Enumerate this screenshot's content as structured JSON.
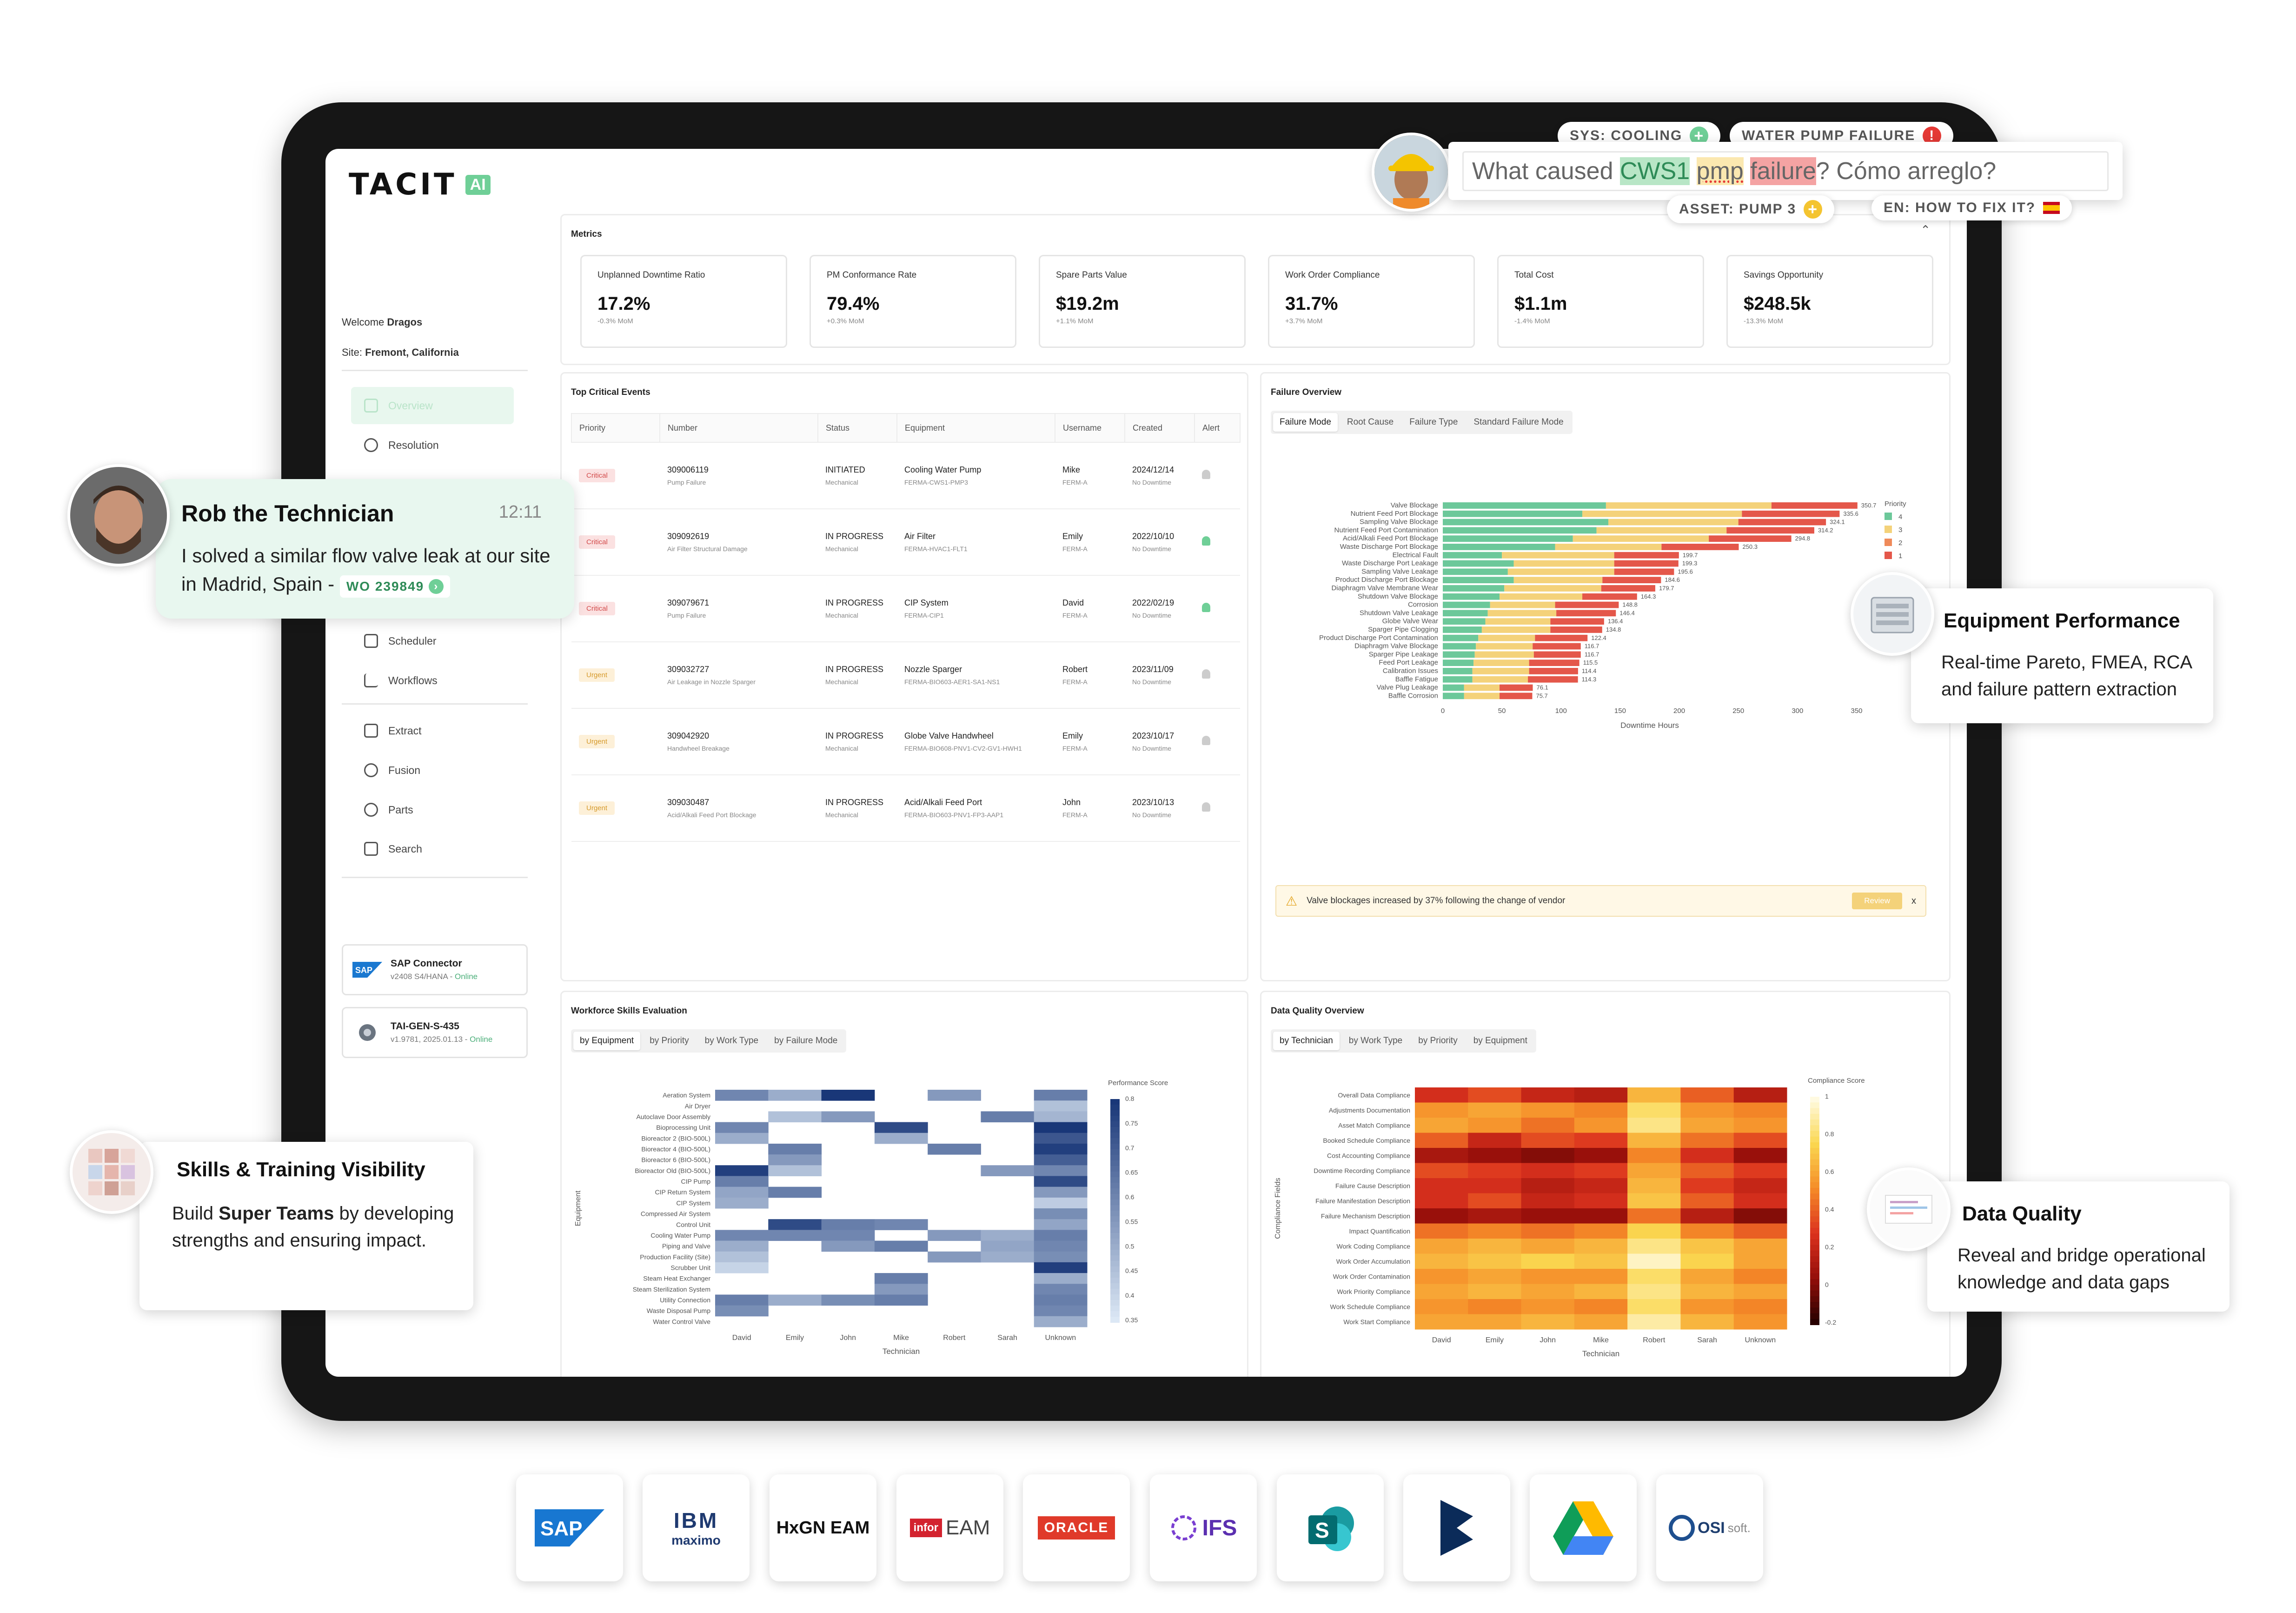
{
  "sidebar": {
    "brand": "TACIT",
    "brand_badge": "AI",
    "welcome_prefix": "Welcome",
    "user_name": "Dragos",
    "site_prefix": "Site:",
    "site_name": "Fremont, California",
    "nav": [
      {
        "label": "Overview",
        "icon": "grid-icon"
      },
      {
        "label": "Resolution",
        "icon": "resolution-icon"
      },
      {
        "label": "Scheduler",
        "icon": "calendar-icon"
      },
      {
        "label": "Workflows",
        "icon": "workflow-icon"
      },
      {
        "label": "Extract",
        "icon": "extract-icon"
      },
      {
        "label": "Fusion",
        "icon": "fusion-icon"
      },
      {
        "label": "Parts",
        "icon": "parts-icon"
      },
      {
        "label": "Search",
        "icon": "search-icon"
      }
    ],
    "connectors": [
      {
        "name": "SAP Connector",
        "version": "v2408 S4/HANA -",
        "status": "Online"
      },
      {
        "name": "TAI-GEN-S-435",
        "version": "v1.9781, 2025.01.13 -",
        "status": "Online"
      }
    ]
  },
  "metrics": {
    "title": "Metrics",
    "cards": [
      {
        "label": "Unplanned Downtime Ratio",
        "value": "17.2%",
        "delta": "-0.3% MoM"
      },
      {
        "label": "PM Conformance Rate",
        "value": "79.4%",
        "delta": "+0.3% MoM"
      },
      {
        "label": "Spare Parts Value",
        "value": "$19.2m",
        "delta": "+1.1% MoM"
      },
      {
        "label": "Work Order Compliance",
        "value": "31.7%",
        "delta": "+3.7% MoM"
      },
      {
        "label": "Total Cost",
        "value": "$1.1m",
        "delta": "-1.4% MoM"
      },
      {
        "label": "Savings Opportunity",
        "value": "$248.5k",
        "delta": "-13.3% MoM"
      }
    ]
  },
  "events": {
    "title": "Top Critical Events",
    "columns": [
      "Priority",
      "Number",
      "Status",
      "Equipment",
      "Username",
      "Created",
      "Alert"
    ],
    "rows": [
      {
        "priority": "Critical",
        "number": "309006119",
        "desc": "Pump Failure",
        "status": "INITIATED",
        "status_sub": "Mechanical",
        "equipment": "Cooling Water Pump",
        "equip_code": "FERMA-CWS1-PMP3",
        "user": "Mike",
        "user_sub": "FERM-A",
        "created": "2024/12/14",
        "downtime": "No Downtime",
        "alert": false
      },
      {
        "priority": "Critical",
        "number": "309092619",
        "desc": "Air Filter Structural Damage",
        "status": "IN PROGRESS",
        "status_sub": "Mechanical",
        "equipment": "Air Filter",
        "equip_code": "FERMA-HVAC1-FLT1",
        "user": "Emily",
        "user_sub": "FERM-A",
        "created": "2022/10/10",
        "downtime": "No Downtime",
        "alert": true
      },
      {
        "priority": "Critical",
        "number": "309079671",
        "desc": "Pump Failure",
        "status": "IN PROGRESS",
        "status_sub": "Mechanical",
        "equipment": "CIP System",
        "equip_code": "FERMA-CIP1",
        "user": "David",
        "user_sub": "FERM-A",
        "created": "2022/02/19",
        "downtime": "No Downtime",
        "alert": true
      },
      {
        "priority": "Urgent",
        "number": "309032727",
        "desc": "Air Leakage in Nozzle Sparger",
        "status": "IN PROGRESS",
        "status_sub": "Mechanical",
        "equipment": "Nozzle Sparger",
        "equip_code": "FERMA-BIO603-AER1-SA1-NS1",
        "user": "Robert",
        "user_sub": "FERM-A",
        "created": "2023/11/09",
        "downtime": "No Downtime",
        "alert": false
      },
      {
        "priority": "Urgent",
        "number": "309042920",
        "desc": "Handwheel Breakage",
        "status": "IN PROGRESS",
        "status_sub": "Mechanical",
        "equipment": "Globe Valve Handwheel",
        "equip_code": "FERMA-BIO608-PNV1-CV2-GV1-HWH1",
        "user": "Emily",
        "user_sub": "FERM-A",
        "created": "2023/10/17",
        "downtime": "No Downtime",
        "alert": false
      },
      {
        "priority": "Urgent",
        "number": "309030487",
        "desc": "Acid/Alkali Feed Port Blockage",
        "status": "IN PROGRESS",
        "status_sub": "Mechanical",
        "equipment": "Acid/Alkali Feed Port",
        "equip_code": "FERMA-BIO603-PNV1-FP3-AAP1",
        "user": "John",
        "user_sub": "FERM-A",
        "created": "2023/10/13",
        "downtime": "No Downtime",
        "alert": false
      }
    ]
  },
  "failure": {
    "title": "Failure Overview",
    "tabs": [
      "Failure Mode",
      "Root Cause",
      "Failure Type",
      "Standard Failure Mode"
    ],
    "alert_text": "Valve blockages increased by 37% following the change of vendor",
    "review_label": "Review",
    "close_label": "x"
  },
  "workforce": {
    "title": "Workforce Skills Evaluation",
    "tabs": [
      "by Equipment",
      "by Priority",
      "by Work Type",
      "by Failure Mode"
    ]
  },
  "dataquality": {
    "title": "Data Quality Overview",
    "tabs": [
      "by Technician",
      "by Work Type",
      "by Priority",
      "by Equipment"
    ]
  },
  "chart_data": [
    {
      "type": "bar",
      "orientation": "horizontal",
      "stacked": true,
      "title": "",
      "xlabel": "Downtime Hours",
      "ylabel": "",
      "xlim": [
        0,
        350
      ],
      "xticks": [
        0,
        50,
        100,
        150,
        200,
        250,
        300,
        350
      ],
      "legend_title": "Priority",
      "legend_placement": "right",
      "categories": [
        "Valve Blockage",
        "Nutrient Feed Port Blockage",
        "Sampling Valve Blockage",
        "Nutrient Feed Port Contamination",
        "Acid/Alkali Feed Port Blockage",
        "Waste Discharge Port Blockage",
        "Electrical Fault",
        "Waste Discharge Port Leakage",
        "Sampling Valve Leakage",
        "Product Discharge Port Blockage",
        "Diaphragm Valve Membrane Wear",
        "Shutdown Valve Blockage",
        "Corrosion",
        "Shutdown Valve Leakage",
        "Globe Valve Wear",
        "Sparger Pipe Clogging",
        "Product Discharge Port Contamination",
        "Diaphragm Valve Blockage",
        "Sparger Pipe Leakage",
        "Feed Port Leakage",
        "Calibration Issues",
        "Baffle Fatigue",
        "Valve Plug Leakage",
        "Baffle Corrosion"
      ],
      "totals": [
        "350.7",
        "335.6",
        "324.1",
        "314.2",
        "294.8",
        "250.3",
        "199.7",
        "199.3",
        "195.6",
        "184.6",
        "179.7",
        "164.3",
        "148.8",
        "146.4",
        "136.4",
        "134.8",
        "122.4",
        "116.7",
        "116.7",
        "115.5",
        "114.4",
        "114.3",
        "76.1",
        "75.7"
      ],
      "series": [
        {
          "name": "4",
          "color": "#6cc89a",
          "values": [
            138,
            118,
            140,
            130,
            110,
            95,
            50,
            60,
            55,
            60,
            52,
            48,
            40,
            38,
            36,
            33,
            30,
            28,
            27,
            26,
            25,
            25,
            18,
            18
          ]
        },
        {
          "name": "3",
          "color": "#f4d27a",
          "values": [
            140,
            135,
            110,
            110,
            115,
            90,
            95,
            85,
            90,
            75,
            82,
            70,
            55,
            58,
            55,
            58,
            48,
            48,
            50,
            47,
            48,
            47,
            30,
            30
          ]
        },
        {
          "name": "2",
          "color": "#ef8a5a",
          "values": [
            0,
            0,
            0,
            0,
            0,
            0,
            0,
            0,
            0,
            0,
            0,
            0,
            0,
            0,
            0,
            0,
            0,
            0,
            0,
            0,
            0,
            0,
            0,
            0
          ]
        },
        {
          "name": "1",
          "color": "#e4574a",
          "values": [
            72.7,
            82.6,
            74.1,
            74.2,
            69.8,
            65.3,
            54.7,
            54.3,
            50.6,
            49.6,
            45.7,
            46.3,
            53.8,
            50.4,
            45.4,
            43.8,
            44.4,
            40.7,
            39.7,
            42.5,
            41.4,
            42.3,
            28.1,
            27.7
          ]
        }
      ]
    },
    {
      "type": "heatmap",
      "title": "",
      "xlabel": "Technician",
      "ylabel": "Equipment",
      "colorbar_label": "Performance Score",
      "colorbar_ticks": [
        "0.8",
        "0.75",
        "0.7",
        "0.65",
        "0.6",
        "0.55",
        "0.5",
        "0.45",
        "0.4",
        "0.35"
      ],
      "x": [
        "David",
        "Emily",
        "John",
        "Mike",
        "Robert",
        "Sarah",
        "Unknown"
      ],
      "y": [
        "Aeration System",
        "Air Dryer",
        "Autoclave Door Assembly",
        "Bioprocessing Unit",
        "Bioreactor 2 (BIO-500L)",
        "Bioreactor 4 (BIO-500L)",
        "Bioreactor 6 (BIO-500L)",
        "Bioreactor Old (BIO-500L)",
        "CIP Pump",
        "CIP Return System",
        "CIP System",
        "Compressed Air System",
        "Control Unit",
        "Cooling Water Pump",
        "Piping and Valve",
        "Production Facility (Site)",
        "Scrubber Unit",
        "Steam Heat Exchanger",
        "Steam Sterilization System",
        "Utility Connection",
        "Waste Disposal Pump",
        "Water Control Valve"
      ],
      "z": [
        [
          0.6,
          0.5,
          0.8,
          null,
          0.55,
          null,
          0.62
        ],
        [
          null,
          null,
          null,
          null,
          null,
          null,
          0.45
        ],
        [
          null,
          0.45,
          0.55,
          null,
          null,
          0.62,
          0.48
        ],
        [
          0.6,
          null,
          null,
          0.75,
          null,
          null,
          0.8
        ],
        [
          0.5,
          null,
          null,
          0.5,
          null,
          null,
          0.72
        ],
        [
          null,
          0.62,
          null,
          null,
          0.62,
          null,
          0.78
        ],
        [
          null,
          0.55,
          null,
          null,
          null,
          null,
          0.7
        ],
        [
          0.78,
          0.45,
          null,
          null,
          null,
          0.55,
          0.6
        ],
        [
          0.62,
          null,
          null,
          null,
          null,
          null,
          0.75
        ],
        [
          0.52,
          0.62,
          null,
          null,
          null,
          null,
          0.55
        ],
        [
          0.5,
          null,
          null,
          null,
          null,
          null,
          0.42
        ],
        [
          null,
          null,
          null,
          null,
          null,
          null,
          0.58
        ],
        [
          null,
          0.75,
          0.62,
          0.6,
          null,
          null,
          0.52
        ],
        [
          0.6,
          0.6,
          0.6,
          null,
          0.55,
          0.5,
          0.62
        ],
        [
          0.5,
          null,
          0.55,
          0.62,
          null,
          0.52,
          0.6
        ],
        [
          0.45,
          null,
          null,
          null,
          0.55,
          0.5,
          0.58
        ],
        [
          0.4,
          null,
          null,
          null,
          null,
          null,
          0.78
        ],
        [
          null,
          null,
          null,
          0.62,
          null,
          null,
          0.5
        ],
        [
          null,
          null,
          null,
          0.55,
          null,
          null,
          0.6
        ],
        [
          0.62,
          0.5,
          0.58,
          0.62,
          null,
          null,
          0.62
        ],
        [
          0.58,
          null,
          null,
          null,
          null,
          null,
          0.6
        ],
        [
          null,
          null,
          null,
          null,
          null,
          null,
          0.5
        ]
      ]
    },
    {
      "type": "heatmap",
      "title": "",
      "xlabel": "Technician",
      "ylabel": "Compliance Fields",
      "colorbar_label": "Compliance Score",
      "colorbar_ticks": [
        "1",
        "0.8",
        "0.6",
        "0.4",
        "0.2",
        "0",
        "-0.2"
      ],
      "x": [
        "David",
        "Emily",
        "John",
        "Mike",
        "Robert",
        "Sarah",
        "Unknown"
      ],
      "y": [
        "Overall Data Compliance",
        "Adjustments Documentation",
        "Asset Match Compliance",
        "Booked Schedule Compliance",
        "Cost Accounting Compliance",
        "Downtime Recording Compliance",
        "Failure Cause Description",
        "Failure Manifestation Description",
        "Failure Mechanism Description",
        "Impact Quantification",
        "Work Coding Compliance",
        "Work Order Accumulation",
        "Work Order Contamination",
        "Work Priority Compliance",
        "Work Schedule Compliance",
        "Work Start Compliance"
      ],
      "z": [
        [
          0.25,
          0.35,
          0.2,
          0.15,
          0.65,
          0.4,
          0.15
        ],
        [
          0.55,
          0.6,
          0.55,
          0.5,
          0.8,
          0.55,
          0.5
        ],
        [
          0.6,
          0.55,
          0.45,
          0.55,
          0.85,
          0.6,
          0.55
        ],
        [
          0.4,
          0.2,
          0.35,
          0.3,
          0.65,
          0.45,
          0.35
        ],
        [
          0.1,
          0.05,
          0.0,
          0.05,
          0.5,
          0.25,
          0.05
        ],
        [
          0.35,
          0.3,
          0.25,
          0.3,
          0.6,
          0.4,
          0.3
        ],
        [
          0.25,
          0.25,
          0.15,
          0.2,
          0.65,
          0.3,
          0.2
        ],
        [
          0.25,
          0.35,
          0.2,
          0.25,
          0.7,
          0.4,
          0.25
        ],
        [
          0.05,
          0.1,
          0.05,
          0.05,
          0.45,
          0.15,
          0.0
        ],
        [
          0.45,
          0.5,
          0.45,
          0.5,
          0.75,
          0.5,
          0.4
        ],
        [
          0.6,
          0.65,
          0.6,
          0.65,
          0.85,
          0.7,
          0.6
        ],
        [
          0.65,
          0.7,
          0.75,
          0.7,
          0.95,
          0.75,
          0.6
        ],
        [
          0.55,
          0.6,
          0.55,
          0.55,
          0.8,
          0.6,
          0.5
        ],
        [
          0.6,
          0.65,
          0.6,
          0.65,
          0.85,
          0.65,
          0.6
        ],
        [
          0.55,
          0.5,
          0.55,
          0.5,
          0.8,
          0.55,
          0.5
        ],
        [
          0.6,
          0.6,
          0.65,
          0.6,
          0.9,
          0.65,
          0.55
        ]
      ]
    }
  ],
  "query": {
    "tag_system": "SYS: COOLING",
    "tag_failure": "WATER PUMP FAILURE",
    "tag_asset": "ASSET: PUMP 3",
    "tag_translate": "EN: HOW TO FIX IT?",
    "text_prefix": "What caused",
    "token_asset": "CWS1",
    "token_typo": "pmp",
    "token_failure": "failure",
    "text_suffix": "? Cómo arreglo?"
  },
  "chat_callout": {
    "name": "Rob the Technician",
    "time": "12:11",
    "message": "I solved a similar flow valve leak at our site in Madrid, Spain -",
    "wo_link": "WO 239849"
  },
  "callouts": {
    "equipment": {
      "title": "Equipment Performance",
      "body": "Real-time Pareto, FMEA, RCA and failure pattern extraction"
    },
    "skills": {
      "title": "Skills & Training Visibility",
      "body_prefix": "Build",
      "body_bold": "Super Teams",
      "body_suffix": "by developing strengths and ensuring impact."
    },
    "dataquality": {
      "title": "Data Quality",
      "body": "Reveal and bridge operational knowledge and data gaps"
    }
  },
  "integrations": [
    "SAP",
    "IBM maximo",
    "HxGN EAM",
    "infor EAM",
    "ORACLE",
    "IFS",
    "SharePoint",
    "Dynamics",
    "Google Drive",
    "OSIsoft"
  ],
  "integration_text": {
    "ibm": "IBM",
    "maximo": "maximo",
    "hxgn": "HxGN EAM",
    "infor": "infor",
    "eam": "EAM",
    "oracle": "ORACLE",
    "ifs": "IFS",
    "osi": "OSI",
    "soft": "soft."
  },
  "colors": {
    "accent": "#6fcf97",
    "critical": "#d24a4a",
    "urgent": "#d69a2c",
    "warning_bg": "#fff8e6"
  }
}
